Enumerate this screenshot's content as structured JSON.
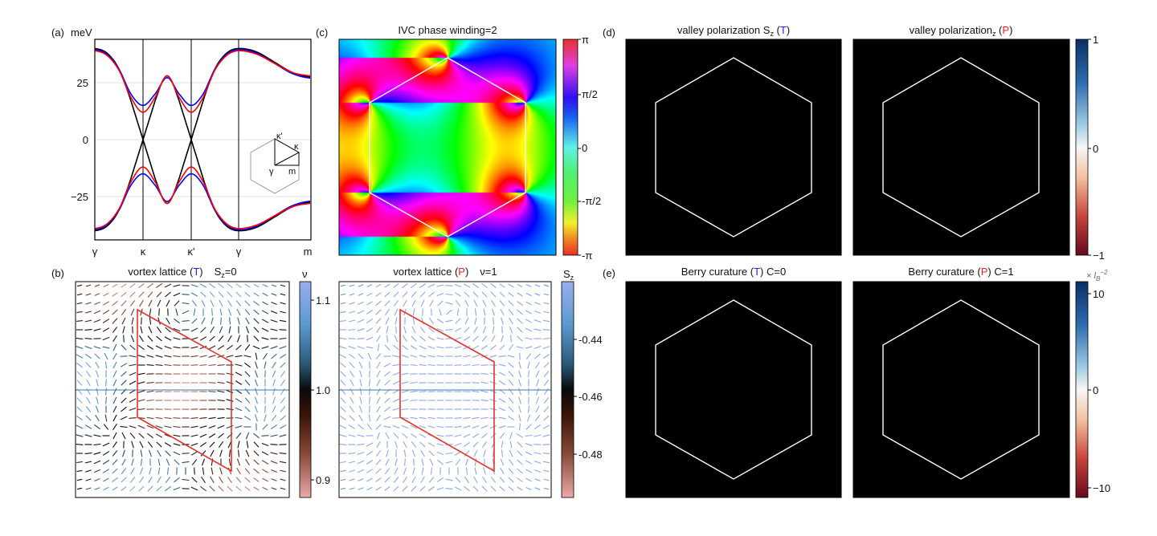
{
  "colors": {
    "T_marker": "#2222ee",
    "P_marker": "#ee2222",
    "band_black": "#000000",
    "band_blue": "#0000ff",
    "band_red": "#ff0000",
    "cell_outline_b": "#e8322a",
    "hexagon_outline": "#ffffff"
  },
  "panels": {
    "a": {
      "label": "(a)",
      "ylabel": "meV",
      "yticks": [
        "25",
        "0",
        "−25"
      ],
      "xticks": [
        "γ",
        "κ",
        "κ'",
        "γ",
        "m"
      ],
      "inset": {
        "kp": "κ'",
        "k": "κ",
        "g": "γ",
        "m": "m"
      }
    },
    "b": {
      "label": "(b)",
      "left": {
        "t1": "vortex lattice (",
        "mark": "T",
        "t2": ")",
        "extra_main": "S",
        "extra_sub": "z",
        "extra_tail": "=0"
      },
      "right": {
        "t1": "vortex lattice (",
        "mark": "P",
        "t2": ")",
        "extra": "ν=1"
      },
      "cbar_left": {
        "label": "ν",
        "ticks": [
          "1.1",
          "1.0",
          "0.9"
        ]
      },
      "cbar_right": {
        "label_main": "S",
        "label_sub": "z",
        "ticks": [
          "-0.44",
          "-0.46",
          "-0.48"
        ]
      }
    },
    "c": {
      "label": "(c)",
      "title": "IVC phase winding=2",
      "cbar_ticks": [
        "π",
        "π/2",
        "0",
        "-π/2",
        "-π"
      ]
    },
    "d": {
      "label": "(d)",
      "left": {
        "t1": "valley polarization S",
        "sub": "z",
        "t2": " (",
        "mark": "T",
        "t3": ")"
      },
      "right": {
        "t1": "valley polarization",
        "sub": "z",
        "t2": " (",
        "mark": "P",
        "t3": ")"
      },
      "cbar_ticks": [
        "1",
        "0",
        "−1"
      ]
    },
    "e": {
      "label": "(e)",
      "left": {
        "t1": "Berry curature (",
        "mark": "T",
        "t2": ")  C=0"
      },
      "right": {
        "t1": "Berry curature (",
        "mark": "P",
        "t2": ")  C=1"
      },
      "cbar_unit_main": "× l",
      "cbar_unit_sub": "B",
      "cbar_unit_sup": "−2",
      "cbar_ticks": [
        "10",
        "0",
        "−10"
      ]
    }
  },
  "chart_data": [
    {
      "panel": "a",
      "type": "line",
      "ylabel": "meV",
      "ylim": [
        -44,
        44
      ],
      "grid": "horizontal",
      "x_path": [
        "γ",
        "κ",
        "κ'",
        "γ",
        "m"
      ],
      "x": [
        0,
        0.25,
        0.5,
        0.75,
        1,
        1.25,
        1.5,
        1.75,
        2,
        2.25,
        2.5,
        2.75,
        3,
        3.25,
        3.5,
        3.75,
        4
      ],
      "series": [
        {
          "color": "#000000",
          "upper": [
            40,
            38,
            31,
            17,
            0,
            17,
            28,
            17,
            0,
            17,
            31,
            38,
            40,
            38.5,
            34,
            29.5,
            27.5
          ]
        },
        {
          "color": "#0000ff",
          "upper": [
            39.5,
            37.5,
            31,
            20,
            15,
            20,
            27.2,
            20,
            15,
            20,
            31,
            37.5,
            39.5,
            38,
            33.5,
            29,
            27
          ]
        },
        {
          "color": "#ff0000",
          "upper": [
            39,
            37,
            30.5,
            18.5,
            12,
            18.5,
            28,
            18.5,
            12,
            18.5,
            30.5,
            37,
            39,
            37.5,
            33.5,
            29.5,
            28
          ]
        }
      ],
      "symmetric_lower_bands": true
    },
    {
      "panel": "b-left",
      "type": "quiver",
      "colorbar": {
        "label": "ν",
        "range": [
          0.88,
          1.12
        ]
      }
    },
    {
      "panel": "b-right",
      "type": "quiver",
      "colorbar": {
        "label": "Sz",
        "range": [
          -0.495,
          -0.425
        ]
      }
    },
    {
      "panel": "c",
      "type": "heatmap",
      "title": "IVC phase winding=2",
      "colorbar": {
        "range": [
          "-π",
          "π"
        ],
        "colormap": "hsv"
      }
    },
    {
      "panel": "d-left",
      "type": "heatmap",
      "colorbar": {
        "range": [
          -1,
          1
        ],
        "colormap": "RdBu"
      }
    },
    {
      "panel": "d-right",
      "type": "heatmap",
      "colorbar": {
        "range": [
          -1,
          1
        ],
        "colormap": "RdBu"
      }
    },
    {
      "panel": "e-left",
      "type": "heatmap",
      "colorbar": {
        "range": [
          -11,
          11
        ],
        "colormap": "RdBu"
      }
    },
    {
      "panel": "e-right",
      "type": "heatmap",
      "colorbar": {
        "range": [
          -11,
          11
        ],
        "colormap": "RdBu"
      }
    }
  ]
}
